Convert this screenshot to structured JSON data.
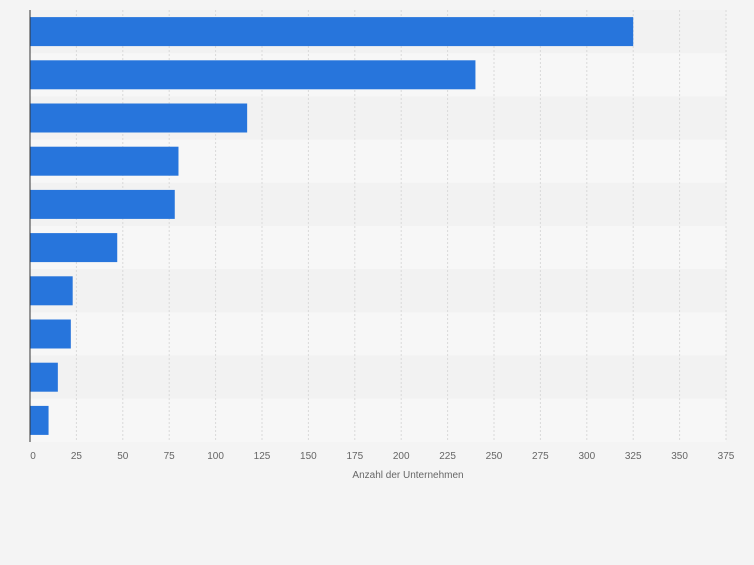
{
  "chart_data": {
    "type": "bar",
    "orientation": "horizontal",
    "categories": [
      "",
      "",
      "",
      "",
      "",
      "",
      "",
      "",
      "",
      ""
    ],
    "values": [
      325,
      240,
      117,
      80,
      78,
      47,
      23,
      22,
      15,
      10
    ],
    "xlabel": "Anzahl der Unternehmen",
    "xlim": [
      0,
      375
    ],
    "xticks": [
      0,
      25,
      50,
      75,
      100,
      125,
      150,
      175,
      200,
      225,
      250,
      275,
      300,
      325,
      350,
      375
    ],
    "grid": true,
    "colors": {
      "bar": "#2775dc",
      "band_light": "#f7f7f7",
      "band_dark": "#f2f2f2",
      "grid": "#d9d9d9",
      "axis": "#333333",
      "tick_text": "#666666"
    }
  }
}
